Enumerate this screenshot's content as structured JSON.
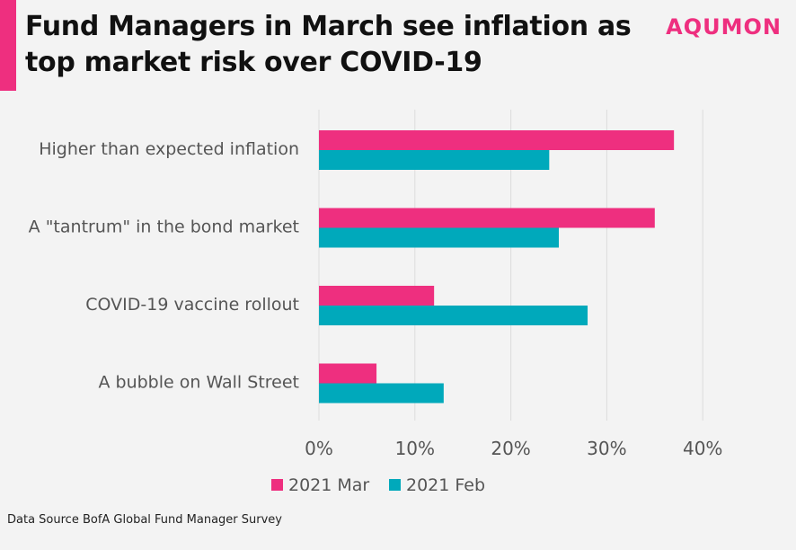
{
  "title": "Fund Managers in March see inflation as top market risk over COVID-19",
  "brand": "AQUMON",
  "source": "Data Source BofA Global Fund Manager Survey",
  "colors": {
    "accent": "#ee2f7f",
    "mar": "#ee2f7f",
    "feb": "#00a9bb",
    "grid": "#dcdcdc"
  },
  "chart_data": {
    "type": "bar",
    "orientation": "horizontal",
    "categories": [
      "Higher than expected inflation",
      "A \"tantrum\" in the bond market",
      "COVID-19 vaccine rollout",
      "A bubble on Wall Street"
    ],
    "series": [
      {
        "name": "2021 Mar",
        "values": [
          37,
          35,
          12,
          6
        ]
      },
      {
        "name": "2021 Feb",
        "values": [
          24,
          25,
          28,
          13
        ]
      }
    ],
    "xlim": [
      0,
      40
    ],
    "xticks": [
      0,
      10,
      20,
      30,
      40
    ],
    "xtick_labels": [
      "0%",
      "10%",
      "20%",
      "30%",
      "40%"
    ],
    "grid": true,
    "legend": "bottom"
  }
}
